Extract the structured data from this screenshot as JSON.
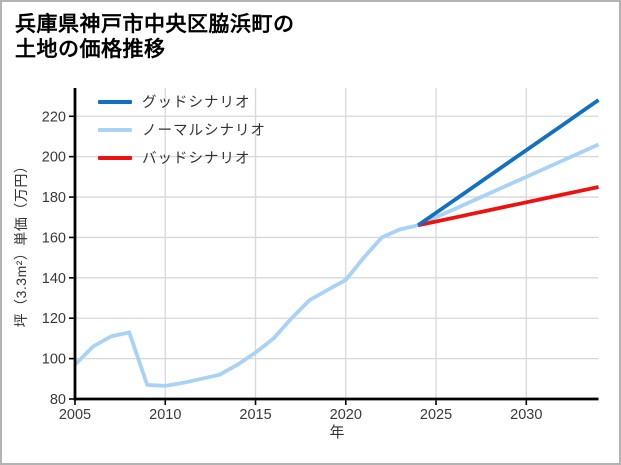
{
  "title": {
    "line1": "兵庫県神戸市中央区脇浜町の",
    "line2": "土地の価格推移"
  },
  "frame_border_color": "#b3b3b3",
  "chart_data": {
    "type": "line",
    "title": "兵庫県神戸市中央区脇浜町の土地の価格推移",
    "xlabel": "年",
    "ylabel": "坪（3.3m²）単価（万円）",
    "xlim": [
      2005,
      2034
    ],
    "ylim": [
      80,
      234
    ],
    "x_ticks": [
      "2005",
      "2010",
      "2015",
      "2020",
      "2025",
      "2030"
    ],
    "x_tick_values": [
      2005,
      2010,
      2015,
      2020,
      2025,
      2030
    ],
    "y_ticks": [
      "80",
      "100",
      "120",
      "140",
      "160",
      "180",
      "200",
      "220"
    ],
    "y_tick_values": [
      80,
      100,
      120,
      140,
      160,
      180,
      200,
      220
    ],
    "grid": true,
    "grid_color": "#d8d8d8",
    "axis_color": "#000000",
    "tick_label_color": "#3a3a3a",
    "legend_position": "upper-left",
    "forecast_start_year": 2024,
    "series": [
      {
        "name": "グッドシナリオ",
        "key": "good",
        "color": "#1170c2",
        "x": [
          2024,
          2025,
          2026,
          2027,
          2028,
          2029,
          2030,
          2031,
          2032,
          2033,
          2034
        ],
        "values": [
          166,
          172.2,
          178.4,
          184.6,
          190.8,
          197,
          203.2,
          209.4,
          215.6,
          221.8,
          228
        ]
      },
      {
        "name": "ノーマルシナリオ",
        "key": "normal",
        "color": "#a9d2f7",
        "x": [
          2005,
          2006,
          2007,
          2008,
          2009,
          2010,
          2011,
          2012,
          2013,
          2014,
          2015,
          2016,
          2017,
          2018,
          2019,
          2020,
          2021,
          2022,
          2023,
          2024,
          2025,
          2026,
          2027,
          2028,
          2029,
          2030,
          2031,
          2032,
          2033,
          2034
        ],
        "values": [
          97,
          106,
          111,
          113,
          87,
          86.5,
          88,
          90,
          92,
          97,
          103,
          110,
          120,
          129,
          134,
          139,
          150,
          160,
          164,
          166,
          170,
          174,
          178,
          182,
          186,
          190,
          194,
          198,
          202,
          206
        ]
      },
      {
        "name": "バッドシナリオ",
        "key": "bad",
        "color": "#ee1111",
        "x": [
          2024,
          2025,
          2026,
          2027,
          2028,
          2029,
          2030,
          2031,
          2032,
          2033,
          2034
        ],
        "values": [
          166,
          167.9,
          169.8,
          171.7,
          173.6,
          175.5,
          177.4,
          179.3,
          181.2,
          183.1,
          185
        ]
      }
    ]
  }
}
